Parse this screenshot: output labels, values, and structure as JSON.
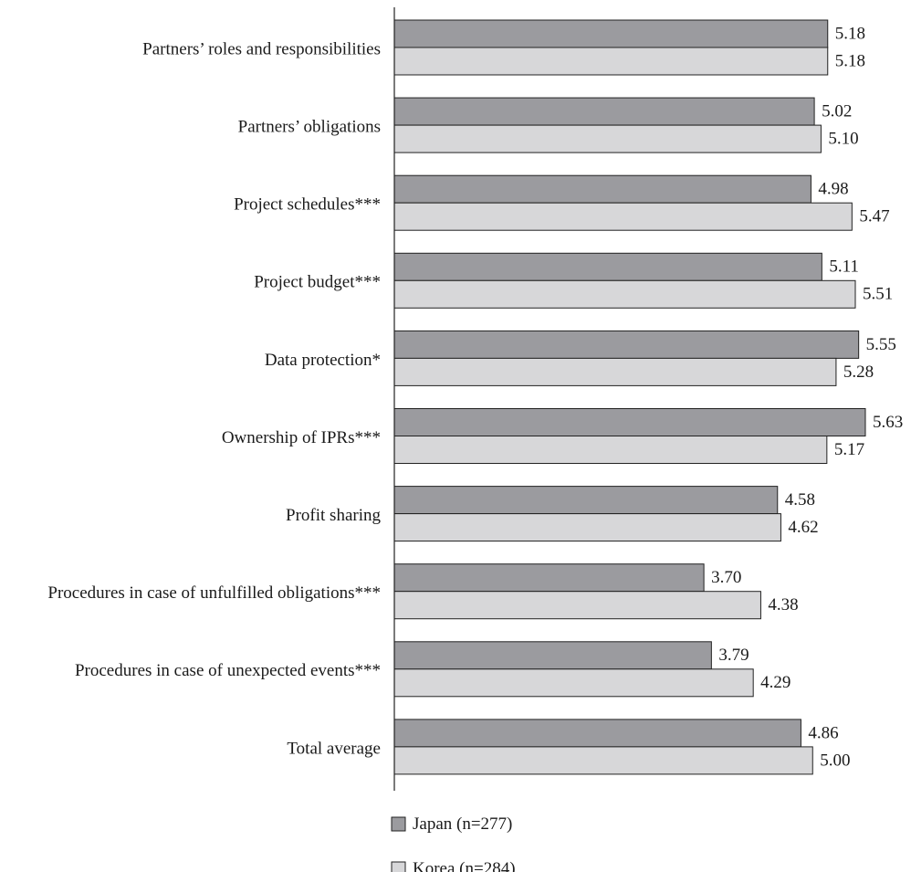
{
  "chart_data": {
    "type": "bar",
    "orientation": "horizontal",
    "categories": [
      "Partners’ roles and responsibilities",
      "Partners’ obligations",
      "Project schedules***",
      "Project budget***",
      "Data protection*",
      "Ownership of IPRs***",
      "Profit sharing",
      "Procedures in case of unfulfilled obligations***",
      "Procedures in case of unexpected events***",
      "Total average"
    ],
    "series": [
      {
        "name": "Japan (n=277)",
        "color": "#9b9b9f",
        "values": [
          5.18,
          5.02,
          4.98,
          5.11,
          5.55,
          5.63,
          4.58,
          3.7,
          3.79,
          4.86
        ],
        "labels": [
          "5.18",
          "5.02",
          "4.98",
          "5.11",
          "5.55",
          "5.63",
          "4.58",
          "3.70",
          "3.79",
          "4.86"
        ]
      },
      {
        "name": "Korea (n=284)",
        "color": "#d7d7d9",
        "values": [
          5.18,
          5.1,
          5.47,
          5.51,
          5.28,
          5.17,
          4.62,
          4.38,
          4.29,
          5.0
        ],
        "labels": [
          "5.18",
          "5.10",
          "5.47",
          "5.51",
          "5.28",
          "5.17",
          "4.62",
          "4.38",
          "4.29",
          "5.00"
        ]
      }
    ],
    "title": "",
    "xlabel": "",
    "ylabel": "",
    "xlim": [
      0,
      5.63
    ],
    "grid": false,
    "legend_position": "bottom-left"
  }
}
